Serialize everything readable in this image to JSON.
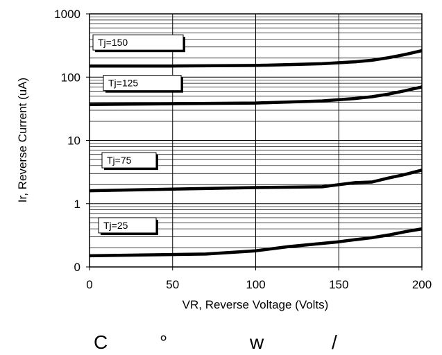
{
  "chart_data": {
    "type": "line",
    "title": "",
    "xlabel": "VR, Reverse Voltage (Volts)",
    "ylabel": "Ir, Reverse Current (uA)",
    "xlim": [
      0,
      200
    ],
    "ylim": [
      0.1,
      1000
    ],
    "yscale": "log",
    "grid": true,
    "x_ticks": [
      0,
      50,
      100,
      150,
      200
    ],
    "y_ticks": [
      0.1,
      1,
      10,
      100,
      1000
    ],
    "x_tick_labels": [
      "0",
      "50",
      "100",
      "150",
      "200"
    ],
    "y_tick_labels": [
      "0",
      "1",
      "10",
      "100",
      "1000"
    ],
    "series": [
      {
        "name": "Tj=150",
        "x": [
          0,
          50,
          100,
          140,
          160,
          170,
          180,
          190,
          200
        ],
        "y": [
          150,
          150,
          153,
          163,
          175,
          185,
          203,
          228,
          262
        ]
      },
      {
        "name": "Tj=125",
        "x": [
          0,
          50,
          100,
          140,
          160,
          170,
          180,
          190,
          200
        ],
        "y": [
          37,
          38,
          39,
          42,
          46,
          49,
          54,
          61,
          70
        ]
      },
      {
        "name": "Tj=75",
        "x": [
          0,
          50,
          100,
          140,
          150,
          160,
          170,
          180,
          190,
          200
        ],
        "y": [
          1.6,
          1.7,
          1.8,
          1.85,
          2.0,
          2.15,
          2.2,
          2.55,
          2.9,
          3.4
        ]
      },
      {
        "name": "Tj=25",
        "x": [
          0,
          70,
          100,
          120,
          150,
          160,
          170,
          180,
          190,
          200
        ],
        "y": [
          0.15,
          0.16,
          0.18,
          0.21,
          0.25,
          0.27,
          0.29,
          0.32,
          0.36,
          0.4
        ]
      }
    ]
  },
  "caption": [
    "C",
    "°",
    "w",
    "/"
  ]
}
